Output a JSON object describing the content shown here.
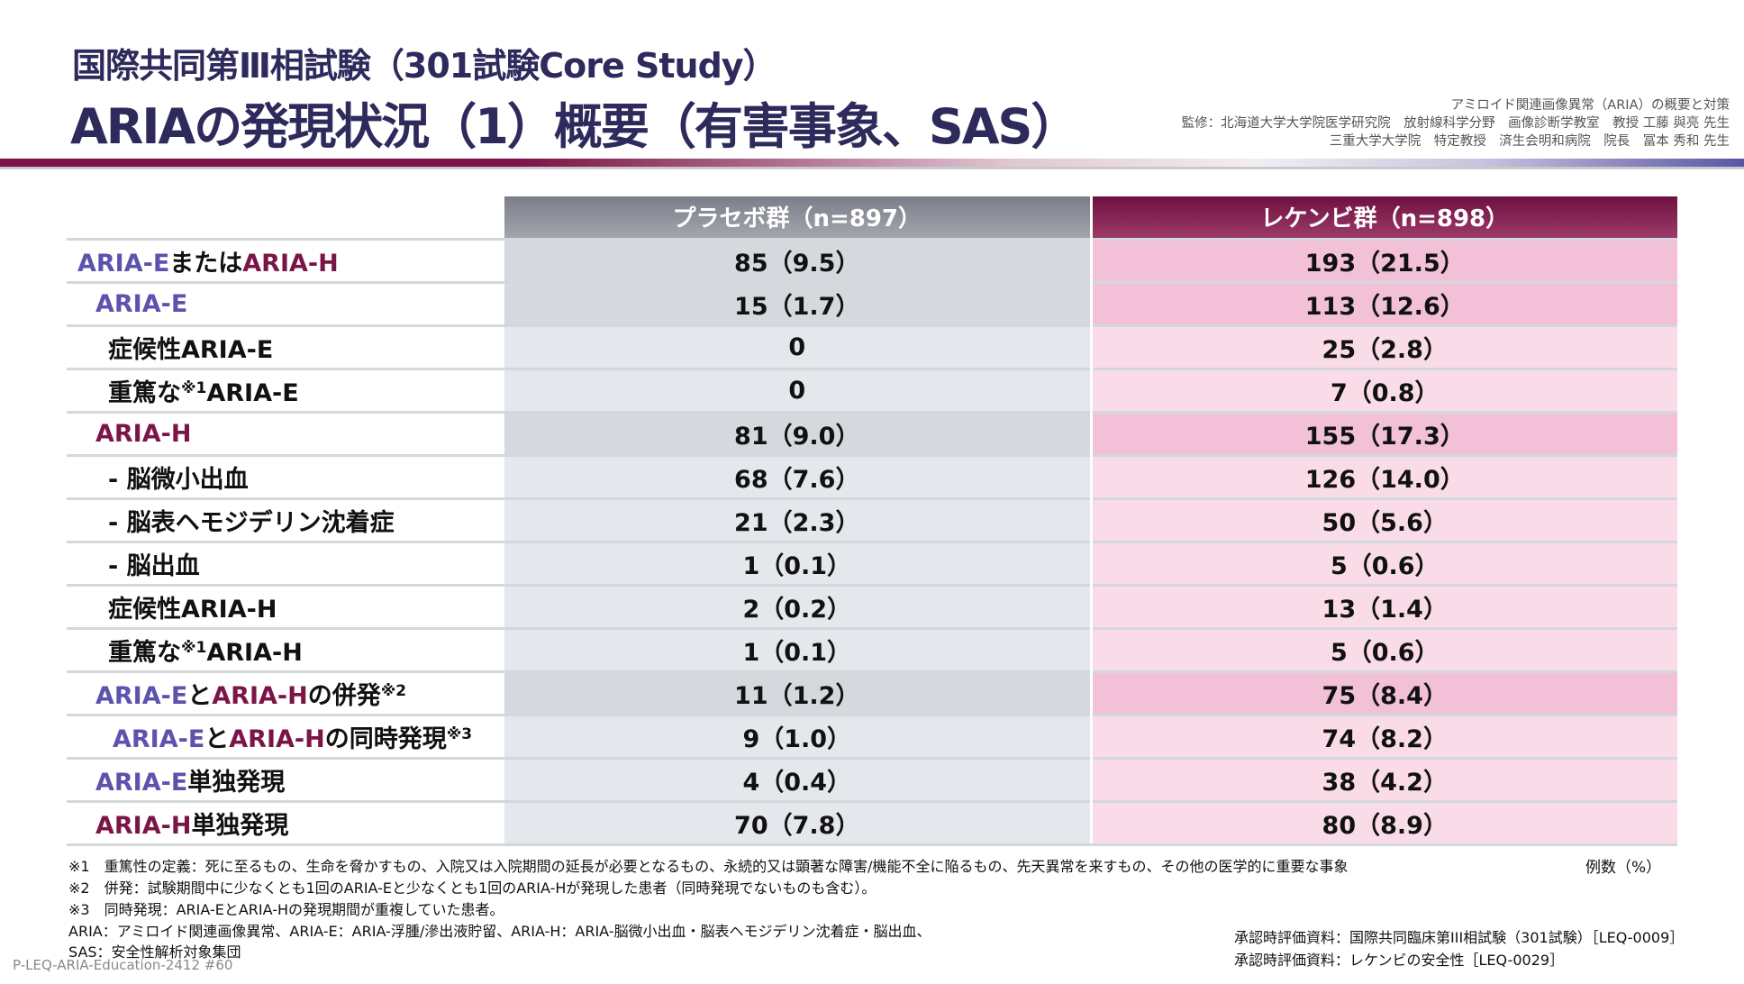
{
  "header": {
    "subtitle": "国際共同第Ⅲ相試験（301試験Core Study）",
    "title": "ARIAの発現状況（1）概要（有害事象、SAS）",
    "supervision": [
      "アミロイド関連画像異常（ARIA）の概要と対策",
      "監修：北海道大学大学院医学研究院　放射線科学分野　画像診断学教室　教授 工藤 與亮 先生",
      "三重大学大学院　特定教授　済生会明和病院　院長　冨本 秀和 先生"
    ]
  },
  "table": {
    "columns": [
      "プラセボ群（n=897）",
      "レケンビ群（n=898）"
    ],
    "rows": [
      {
        "indent": 0,
        "hl": true,
        "label": [
          {
            "t": "ARIA-E",
            "c": "e"
          },
          {
            "t": "または",
            "c": "k"
          },
          {
            "t": "ARIA-H",
            "c": "h"
          }
        ],
        "placebo": "85（9.5）",
        "lecanemab": "193（21.5）"
      },
      {
        "indent": 1,
        "hl": true,
        "label": [
          {
            "t": "ARIA-E",
            "c": "e"
          }
        ],
        "placebo": "15（1.7）",
        "lecanemab": "113（12.6）"
      },
      {
        "indent": 2,
        "hl": false,
        "label": [
          {
            "t": "症候性ARIA-E",
            "c": "k"
          }
        ],
        "placebo": "0",
        "lecanemab": "25（2.8）"
      },
      {
        "indent": 2,
        "hl": false,
        "label": [
          {
            "t": "重篤な",
            "c": "k"
          },
          {
            "t": "※1",
            "c": "sup"
          },
          {
            "t": "ARIA-E",
            "c": "k"
          }
        ],
        "placebo": "0",
        "lecanemab": "7（0.8）"
      },
      {
        "indent": 1,
        "hl": true,
        "label": [
          {
            "t": "ARIA-H",
            "c": "h"
          }
        ],
        "placebo": "81（9.0）",
        "lecanemab": "155（17.3）"
      },
      {
        "indent": 2,
        "hl": false,
        "label": [
          {
            "t": "- 脳微小出血",
            "c": "k"
          }
        ],
        "placebo": "68（7.6）",
        "lecanemab": "126（14.0）"
      },
      {
        "indent": 2,
        "hl": false,
        "label": [
          {
            "t": "- 脳表ヘモジデリン沈着症",
            "c": "k"
          }
        ],
        "placebo": "21（2.3）",
        "lecanemab": "50（5.6）"
      },
      {
        "indent": 2,
        "hl": false,
        "label": [
          {
            "t": "- 脳出血",
            "c": "k"
          }
        ],
        "placebo": "1（0.1）",
        "lecanemab": "5（0.6）"
      },
      {
        "indent": 2,
        "hl": false,
        "label": [
          {
            "t": "症候性ARIA-H",
            "c": "k"
          }
        ],
        "placebo": "2（0.2）",
        "lecanemab": "13（1.4）"
      },
      {
        "indent": 2,
        "hl": false,
        "label": [
          {
            "t": "重篤な",
            "c": "k"
          },
          {
            "t": "※1",
            "c": "sup"
          },
          {
            "t": "ARIA-H",
            "c": "k"
          }
        ],
        "placebo": "1（0.1）",
        "lecanemab": "5（0.6）"
      },
      {
        "indent": 1,
        "hl": true,
        "label": [
          {
            "t": "ARIA-E",
            "c": "e"
          },
          {
            "t": "と",
            "c": "k"
          },
          {
            "t": "ARIA-H",
            "c": "h"
          },
          {
            "t": "の併発",
            "c": "k"
          },
          {
            "t": "※2",
            "c": "sup"
          }
        ],
        "placebo": "11（1.2）",
        "lecanemab": "75（8.4）"
      },
      {
        "indent": 3,
        "hl": false,
        "label": [
          {
            "t": "ARIA-E",
            "c": "e"
          },
          {
            "t": "と",
            "c": "k"
          },
          {
            "t": "ARIA-H",
            "c": "h"
          },
          {
            "t": "の同時発現",
            "c": "k"
          },
          {
            "t": "※3",
            "c": "sup"
          }
        ],
        "placebo": "9（1.0）",
        "lecanemab": "74（8.2）"
      },
      {
        "indent": 1,
        "hl": false,
        "label": [
          {
            "t": "ARIA-E",
            "c": "e"
          },
          {
            "t": "単独発現",
            "c": "k"
          }
        ],
        "placebo": "4（0.4）",
        "lecanemab": "38（4.2）"
      },
      {
        "indent": 1,
        "hl": false,
        "label": [
          {
            "t": "ARIA-H",
            "c": "h"
          },
          {
            "t": "単独発現",
            "c": "k"
          }
        ],
        "placebo": "70（7.8）",
        "lecanemab": "80（8.9）"
      }
    ]
  },
  "unit": "例数（%）",
  "footnotes": [
    "※1　重篤性の定義：死に至るもの、生命を脅かすもの、入院又は入院期間の延長が必要となるもの、永続的又は顕著な障害/機能不全に陥るもの、先天異常を来すもの、その他の医学的に重要な事象",
    "※2　併発：試験期間中に少なくとも1回のARIA-Eと少なくとも1回のARIA-Hが発現した患者（同時発現でないものも含む）。",
    "※3　同時発現：ARIA-EとARIA-Hの発現期間が重複していた患者。",
    "ARIA：アミロイド関連画像異常、ARIA-E：ARIA-浮腫/滲出液貯留、ARIA-H：ARIA-脳微小出血・脳表ヘモジデリン沈着症・脳出血、",
    "SAS：安全性解析対象集団"
  ],
  "references": [
    "承認時評価資料：国際共同臨床第III相試験（301試験）［LEQ-0009］",
    "承認時評価資料：レケンビの安全性［LEQ-0029］"
  ],
  "doc_code": "P-LEQ-ARIA-Education-2412 #60"
}
